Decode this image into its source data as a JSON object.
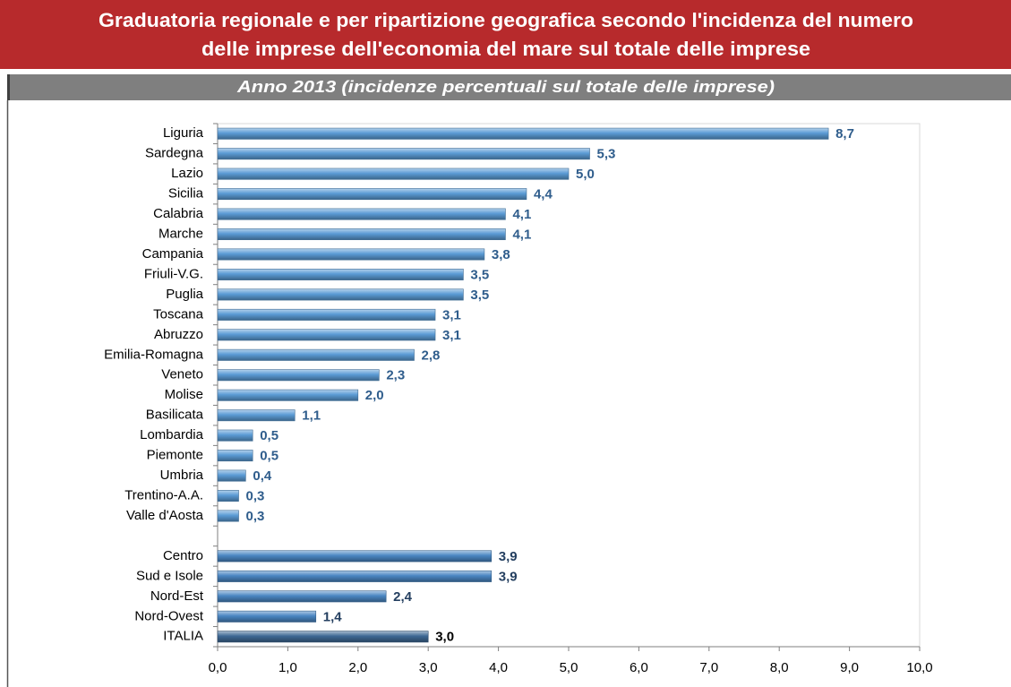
{
  "chart_data": {
    "type": "barh",
    "title": [
      "Graduatoria regionale e per ripartizione geografica secondo l'incidenza del numero",
      "delle imprese dell'economia del mare sul totale delle imprese"
    ],
    "subtitle": "Anno 2013 (incidenze percentuali sul totale delle imprese)",
    "categories": [
      "Liguria",
      "Sardegna",
      "Lazio",
      "Sicilia",
      "Calabria",
      "Marche",
      "Campania",
      "Friuli-V.G.",
      "Puglia",
      "Toscana",
      "Abruzzo",
      "Emilia-Romagna",
      "Veneto",
      "Molise",
      "Basilicata",
      "Lombardia",
      "Piemonte",
      "Umbria",
      "Trentino-A.A.",
      "Valle d'Aosta",
      null,
      "Centro",
      "Sud e Isole",
      "Nord-Est",
      "Nord-Ovest",
      "ITALIA"
    ],
    "values": [
      8.7,
      5.3,
      5.0,
      4.4,
      4.1,
      4.1,
      3.8,
      3.5,
      3.5,
      3.1,
      3.1,
      2.8,
      2.3,
      2.0,
      1.1,
      0.5,
      0.5,
      0.4,
      0.3,
      0.3,
      null,
      3.9,
      3.9,
      2.4,
      1.4,
      3.0
    ],
    "value_labels": [
      "8,7",
      "5,3",
      "5,0",
      "4,4",
      "4,1",
      "4,1",
      "3,8",
      "3,5",
      "3,5",
      "3,1",
      "3,1",
      "2,8",
      "2,3",
      "2,0",
      "1,1",
      "0,5",
      "0,5",
      "0,4",
      "0,3",
      "0,3",
      null,
      "3,9",
      "3,9",
      "2,4",
      "1,4",
      "3,0"
    ],
    "colors": [
      "#5b9bd5",
      "#5b9bd5",
      "#5b9bd5",
      "#5b9bd5",
      "#5b9bd5",
      "#5b9bd5",
      "#5b9bd5",
      "#5b9bd5",
      "#5b9bd5",
      "#5b9bd5",
      "#5b9bd5",
      "#5b9bd5",
      "#5b9bd5",
      "#5b9bd5",
      "#5b9bd5",
      "#5b9bd5",
      "#5b9bd5",
      "#5b9bd5",
      "#5b9bd5",
      "#5b9bd5",
      null,
      "#4a86c2",
      "#4a86c2",
      "#4a86c2",
      "#4a86c2",
      "#3d6894"
    ],
    "label_colors": [
      "#2f5d8c",
      "#2f5d8c",
      "#2f5d8c",
      "#2f5d8c",
      "#2f5d8c",
      "#2f5d8c",
      "#2f5d8c",
      "#2f5d8c",
      "#2f5d8c",
      "#2f5d8c",
      "#2f5d8c",
      "#2f5d8c",
      "#2f5d8c",
      "#2f5d8c",
      "#2f5d8c",
      "#2f5d8c",
      "#2f5d8c",
      "#2f5d8c",
      "#2f5d8c",
      "#2f5d8c",
      null,
      "#243f60",
      "#243f60",
      "#243f60",
      "#243f60",
      "#000000"
    ],
    "xlim": [
      0,
      10
    ],
    "xticks": [
      {
        "value": 0,
        "label": "0,0"
      },
      {
        "value": 1,
        "label": "1,0"
      },
      {
        "value": 2,
        "label": "2,0"
      },
      {
        "value": 3,
        "label": "3,0"
      },
      {
        "value": 4,
        "label": "4,0"
      },
      {
        "value": 5,
        "label": "5,0"
      },
      {
        "value": 6,
        "label": "6,0"
      },
      {
        "value": 7,
        "label": "7,0"
      },
      {
        "value": 8,
        "label": "8,0"
      },
      {
        "value": 9,
        "label": "9,0"
      },
      {
        "value": 10,
        "label": "10,0"
      }
    ],
    "grid": false
  }
}
